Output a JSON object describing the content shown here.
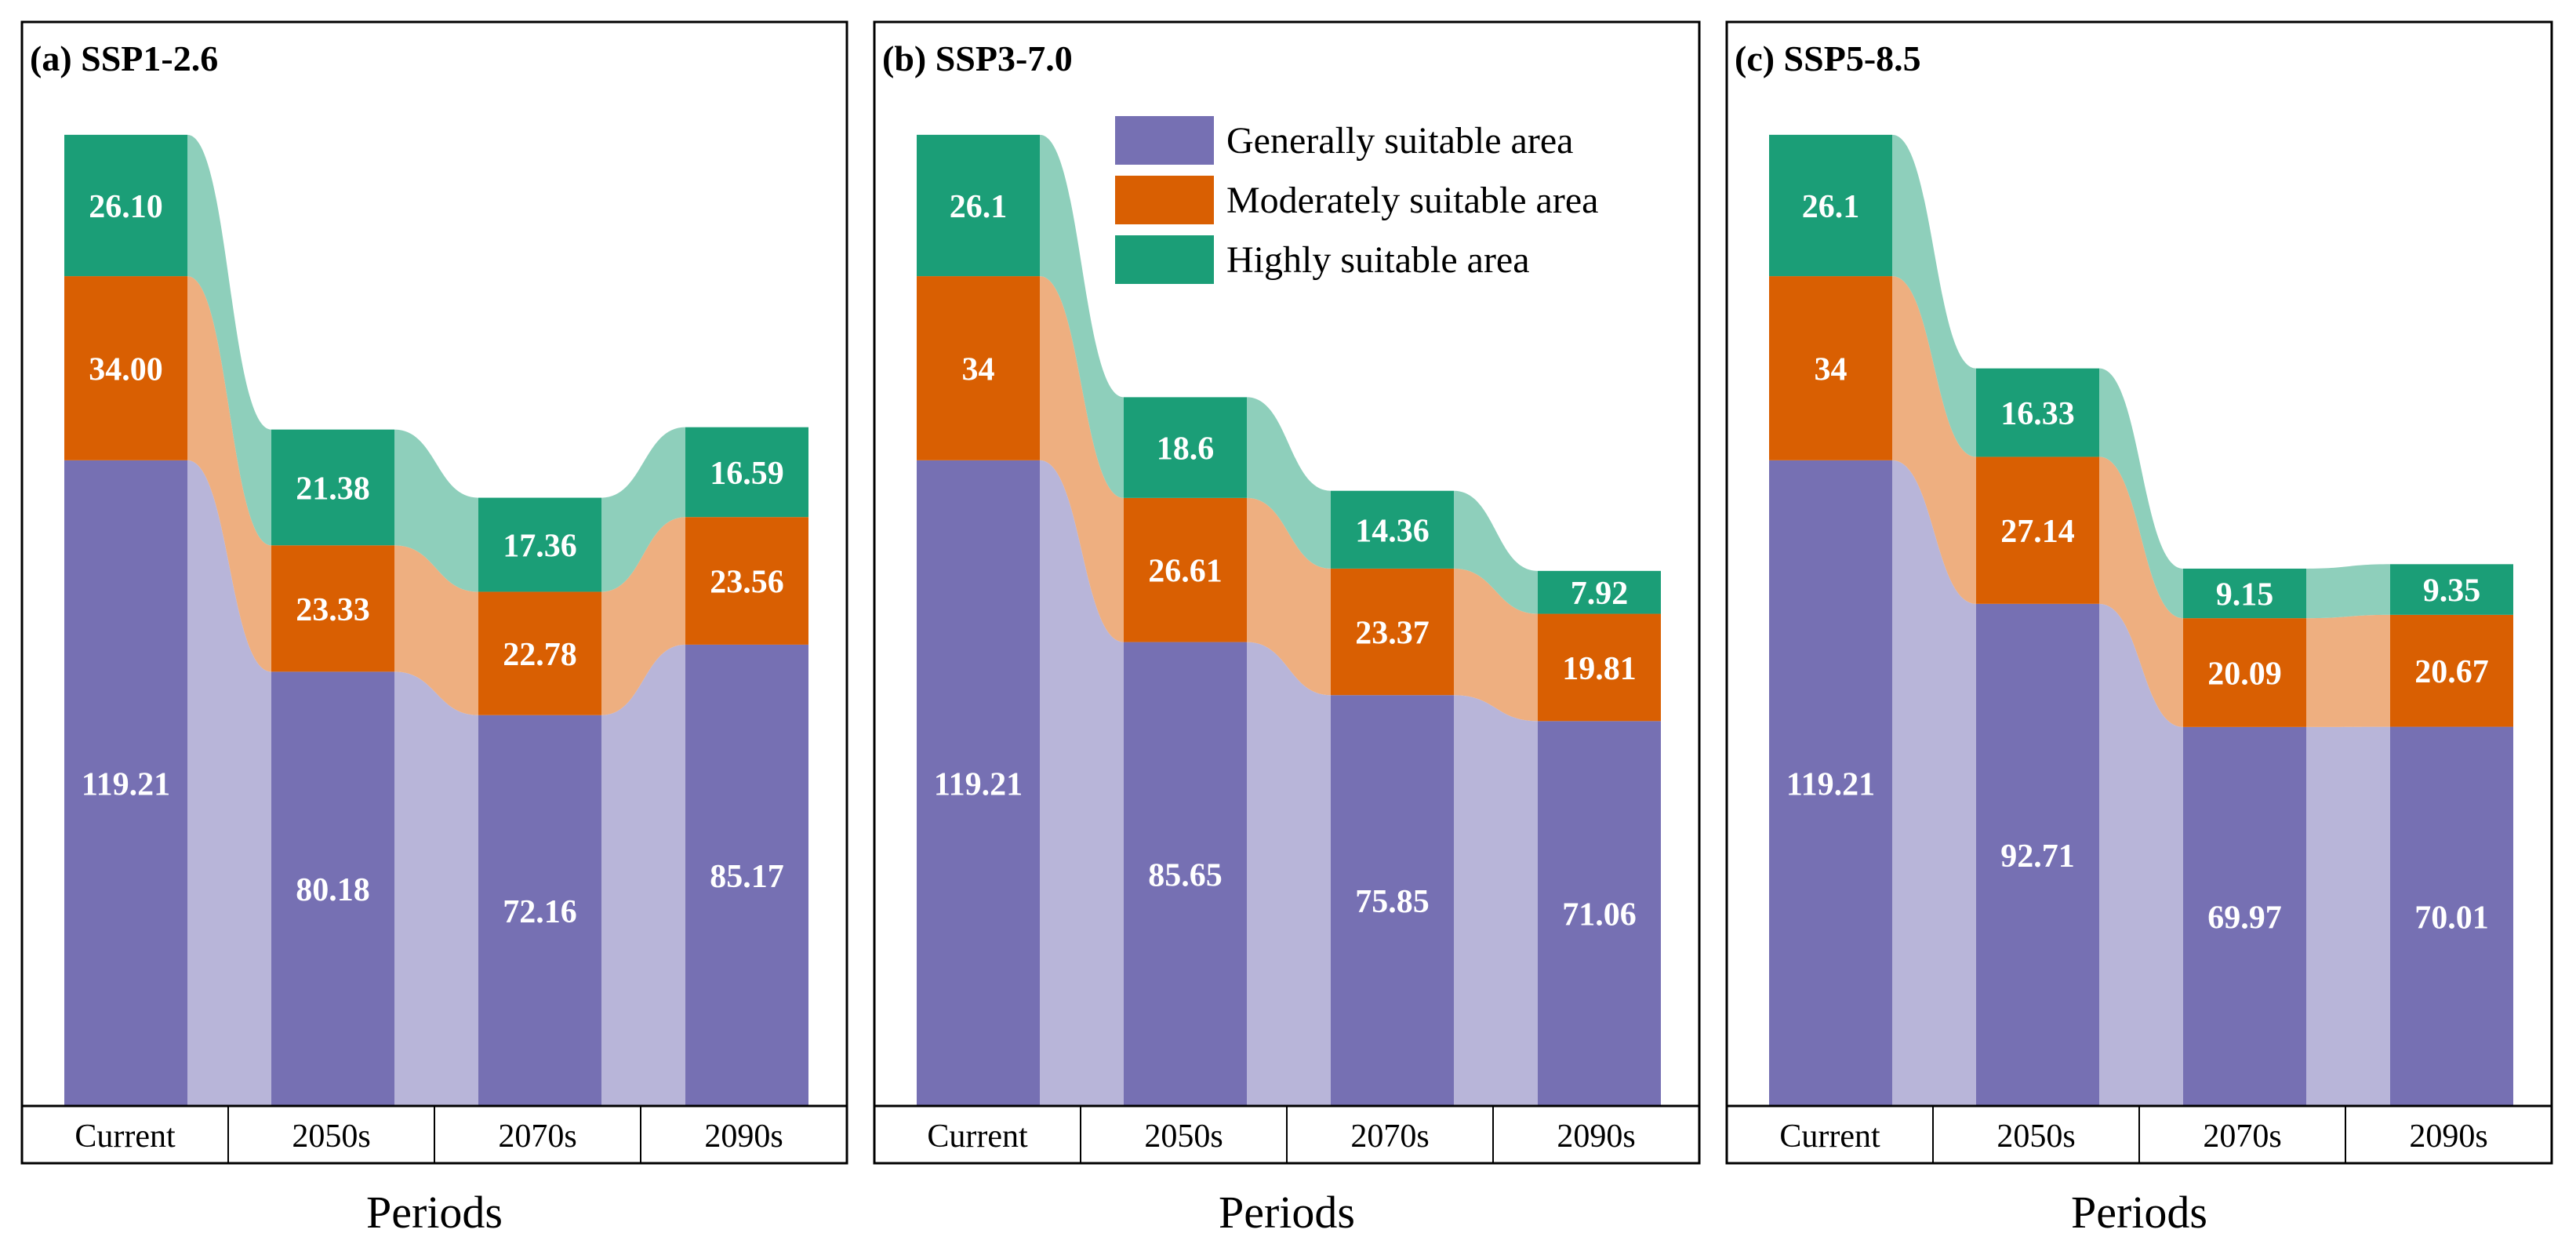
{
  "chart_data": [
    {
      "type": "bar",
      "title": "(a) SSP1-2.6",
      "xlabel": "Periods",
      "categories": [
        "Current",
        "2050s",
        "2070s",
        "2090s"
      ],
      "series": [
        {
          "name": "Generally suitable area",
          "values": [
            119.21,
            80.18,
            72.16,
            85.17
          ],
          "labels": [
            "119.21",
            "80.18",
            "72.16",
            "85.17"
          ]
        },
        {
          "name": "Moderately suitable area",
          "values": [
            34.0,
            23.33,
            22.78,
            23.56
          ],
          "labels": [
            "34.00",
            "23.33",
            "22.78",
            "23.56"
          ]
        },
        {
          "name": "Highly suitable area",
          "values": [
            26.1,
            21.38,
            17.36,
            16.59
          ],
          "labels": [
            "26.10",
            "21.38",
            "17.36",
            "16.59"
          ]
        }
      ],
      "ylim": [
        0,
        200
      ]
    },
    {
      "type": "bar",
      "title": "(b) SSP3-7.0",
      "xlabel": "Periods",
      "categories": [
        "Current",
        "2050s",
        "2070s",
        "2090s"
      ],
      "series": [
        {
          "name": "Generally suitable area",
          "values": [
            119.21,
            85.65,
            75.85,
            71.06
          ],
          "labels": [
            "119.21",
            "85.65",
            "75.85",
            "71.06"
          ]
        },
        {
          "name": "Moderately suitable area",
          "values": [
            34,
            26.61,
            23.37,
            19.81
          ],
          "labels": [
            "34",
            "26.61",
            "23.37",
            "19.81"
          ]
        },
        {
          "name": "Highly suitable area",
          "values": [
            26.1,
            18.6,
            14.36,
            7.92
          ],
          "labels": [
            "26.1",
            "18.6",
            "14.36",
            "7.92"
          ]
        }
      ],
      "ylim": [
        0,
        200
      ],
      "legend_position": "top-right"
    },
    {
      "type": "bar",
      "title": "(c) SSP5-8.5",
      "xlabel": "Periods",
      "categories": [
        "Current",
        "2050s",
        "2070s",
        "2090s"
      ],
      "series": [
        {
          "name": "Generally suitable area",
          "values": [
            119.21,
            92.71,
            69.97,
            70.01
          ],
          "labels": [
            "119.21",
            "92.71",
            "69.97",
            "70.01"
          ]
        },
        {
          "name": "Moderately suitable area",
          "values": [
            34,
            27.14,
            20.09,
            20.67
          ],
          "labels": [
            "34",
            "27.14",
            "20.09",
            "20.67"
          ]
        },
        {
          "name": "Highly suitable area",
          "values": [
            26.1,
            16.33,
            9.15,
            9.35
          ],
          "labels": [
            "26.1",
            "16.33",
            "9.15",
            "9.35"
          ]
        }
      ],
      "ylim": [
        0,
        200
      ]
    }
  ],
  "legend": {
    "items": [
      {
        "label": "Generally suitable area",
        "color": "#7670b3"
      },
      {
        "label": "Moderately suitable area",
        "color": "#d95f02"
      },
      {
        "label": "Highly suitable area",
        "color": "#1b9e77"
      }
    ]
  },
  "colors": {
    "generally": "#7670b3",
    "moderately": "#d95f02",
    "highly": "#1b9e77",
    "generally_flow": "#b8b5d9",
    "moderately_flow": "#eeaf80",
    "highly_flow": "#8ecfbb"
  }
}
